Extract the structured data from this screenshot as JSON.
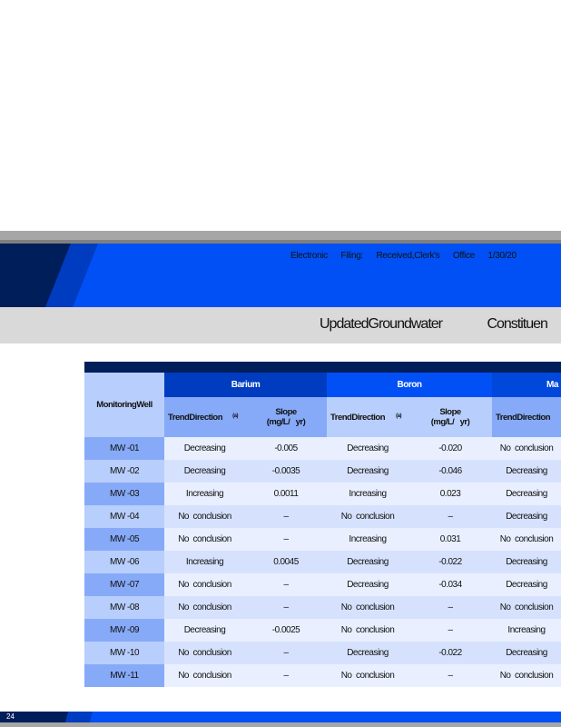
{
  "header": {
    "filing_words": [
      "Electronic",
      "Filing:",
      "Received,Clerk's",
      "Office",
      "1/30/20"
    ],
    "title_words": [
      "UpdatedGroundwater",
      "Constituen"
    ]
  },
  "colors": {
    "navy": "#001e5a",
    "blue": "#0050f5",
    "mid_blue": "#003cc0",
    "header_light": "#b8cefc",
    "header_mid": "#86aaf8"
  },
  "table": {
    "well_header": "MonitoringWell",
    "groups": [
      "Barium",
      "Boron",
      "Ma"
    ],
    "subheaders": {
      "trend": "TrendDirection",
      "note": "(a)",
      "slope_line1": "Slope",
      "slope_line2": "(mg/L/   yr)"
    },
    "rows": [
      [
        "MW -01",
        "Decreasing",
        "-0.005",
        "Decreasing",
        "-0.020",
        "No  conclusion"
      ],
      [
        "MW -02",
        "Decreasing",
        "-0.0035",
        "Decreasing",
        "-0.046",
        "Decreasing"
      ],
      [
        "MW -03",
        "Increasing",
        "0.0011",
        "Increasing",
        "0.023",
        "Decreasing"
      ],
      [
        "MW -04",
        "No  conclusion",
        "–",
        "No  conclusion",
        "–",
        "Decreasing"
      ],
      [
        "MW -05",
        "No  conclusion",
        "–",
        "Increasing",
        "0.031",
        "No  conclusion"
      ],
      [
        "MW -06",
        "Increasing",
        "0.0045",
        "Decreasing",
        "-0.022",
        "Decreasing"
      ],
      [
        "MW -07",
        "No  conclusion",
        "–",
        "Decreasing",
        "-0.034",
        "Decreasing"
      ],
      [
        "MW -08",
        "No  conclusion",
        "–",
        "No  conclusion",
        "–",
        "No  conclusion"
      ],
      [
        "MW -09",
        "Decreasing",
        "-0.0025",
        "No  conclusion",
        "–",
        "Increasing"
      ],
      [
        "MW -10",
        "No  conclusion",
        "–",
        "Decreasing",
        "-0.022",
        "Decreasing"
      ],
      [
        "MW -11",
        "No  conclusion",
        "–",
        "No  conclusion",
        "–",
        "No  conclusion"
      ]
    ]
  },
  "footer": {
    "page_number": "24"
  }
}
